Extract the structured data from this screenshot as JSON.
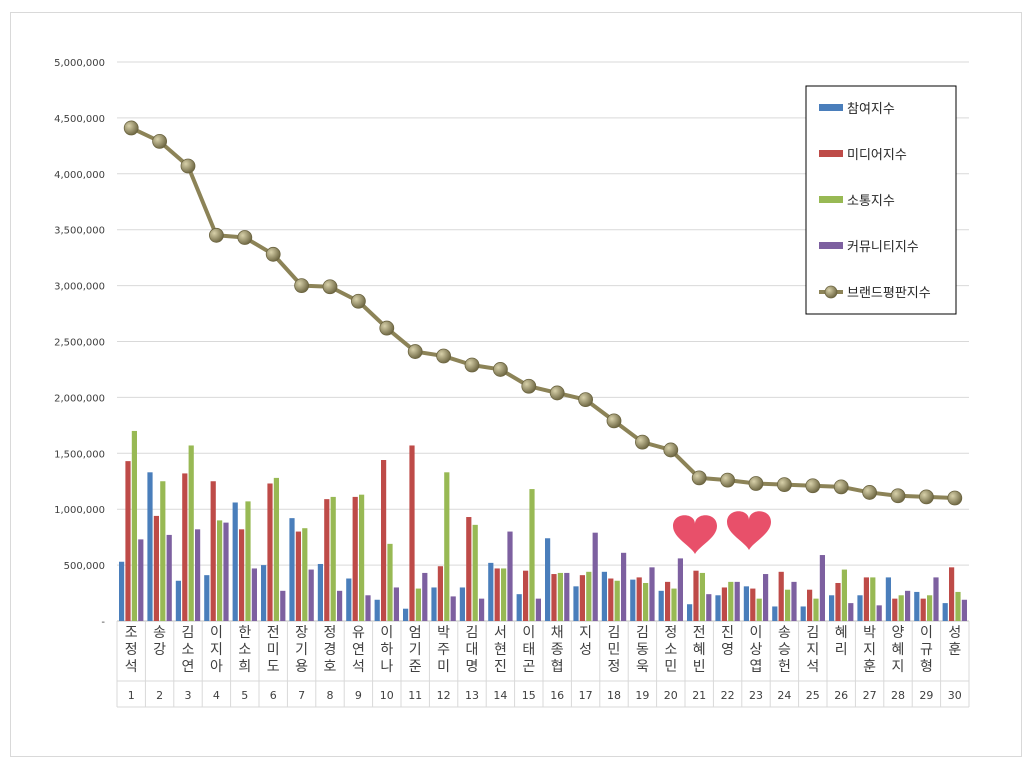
{
  "chart_data": {
    "type": "bar",
    "title": "",
    "xlabel": "",
    "ylabel": "",
    "ylim": [
      0,
      5000000
    ],
    "yticks": [
      0,
      500000,
      1000000,
      1500000,
      2000000,
      2500000,
      3000000,
      3500000,
      4000000,
      4500000,
      5000000
    ],
    "ytick_labels": [
      "-",
      "500,000",
      "1,000,000",
      "1,500,000",
      "2,000,000",
      "2,500,000",
      "3,000,000",
      "3,500,000",
      "4,000,000",
      "4,500,000",
      "5,000,000"
    ],
    "grid": true,
    "legend_position": "top-right",
    "categories": [
      "조정석",
      "송강",
      "김소연",
      "이지아",
      "한소희",
      "전미도",
      "장기용",
      "정경호",
      "유연석",
      "이하나",
      "엄기준",
      "박주미",
      "김대명",
      "서현진",
      "이태곤",
      "채종협",
      "지성",
      "김민정",
      "김동욱",
      "정소민",
      "전혜빈",
      "진영",
      "이상엽",
      "송승헌",
      "김지석",
      "혜리",
      "박지훈",
      "양혜지",
      "이규형",
      "성훈"
    ],
    "ranks": [
      "1",
      "2",
      "3",
      "4",
      "5",
      "6",
      "7",
      "8",
      "9",
      "10",
      "11",
      "12",
      "13",
      "14",
      "15",
      "16",
      "17",
      "18",
      "19",
      "20",
      "21",
      "22",
      "23",
      "24",
      "25",
      "26",
      "27",
      "28",
      "29",
      "30"
    ],
    "series": [
      {
        "name": "참여지수",
        "kind": "bar",
        "color": "#4a7ebb",
        "values": [
          530000,
          1330000,
          360000,
          410000,
          1060000,
          500000,
          920000,
          510000,
          380000,
          190000,
          110000,
          300000,
          300000,
          520000,
          240000,
          740000,
          310000,
          440000,
          370000,
          270000,
          150000,
          230000,
          310000,
          130000,
          130000,
          230000,
          230000,
          390000,
          260000,
          160000
        ]
      },
      {
        "name": "미디어지수",
        "kind": "bar",
        "color": "#be4b48",
        "values": [
          1430000,
          940000,
          1320000,
          1250000,
          820000,
          1230000,
          800000,
          1090000,
          1110000,
          1440000,
          1570000,
          490000,
          930000,
          470000,
          450000,
          420000,
          410000,
          380000,
          390000,
          350000,
          450000,
          300000,
          290000,
          440000,
          280000,
          340000,
          390000,
          200000,
          200000,
          480000
        ]
      },
      {
        "name": "소통지수",
        "kind": "bar",
        "color": "#98b954",
        "values": [
          1700000,
          1250000,
          1570000,
          900000,
          1070000,
          1280000,
          830000,
          1110000,
          1130000,
          690000,
          290000,
          1330000,
          860000,
          470000,
          1180000,
          430000,
          440000,
          360000,
          340000,
          290000,
          430000,
          350000,
          200000,
          280000,
          200000,
          460000,
          390000,
          230000,
          230000,
          260000
        ]
      },
      {
        "name": "커뮤니티지수",
        "kind": "bar",
        "color": "#7d60a0",
        "values": [
          730000,
          770000,
          820000,
          880000,
          470000,
          270000,
          460000,
          270000,
          230000,
          300000,
          430000,
          220000,
          200000,
          800000,
          200000,
          430000,
          790000,
          610000,
          480000,
          560000,
          240000,
          350000,
          420000,
          350000,
          590000,
          160000,
          140000,
          270000,
          390000,
          190000
        ]
      },
      {
        "name": "브랜드평판지수",
        "kind": "line",
        "color": "#8c8357",
        "values": [
          4410000,
          4290000,
          4070000,
          3450000,
          3430000,
          3280000,
          3000000,
          2990000,
          2860000,
          2620000,
          2410000,
          2370000,
          2290000,
          2250000,
          2100000,
          2040000,
          1980000,
          1790000,
          1600000,
          1530000,
          1280000,
          1260000,
          1230000,
          1220000,
          1210000,
          1200000,
          1150000,
          1120000,
          1110000,
          1100000
        ]
      }
    ]
  },
  "colors": {
    "gridline": "#d9d9d9",
    "axis": "#bfbfbf",
    "heart": "#e8506a",
    "marker_light": "#c9c29b",
    "marker_dark": "#6b6440"
  }
}
